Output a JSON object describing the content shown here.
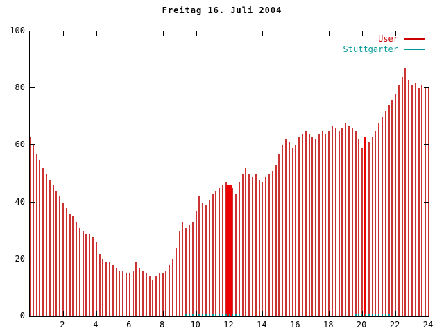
{
  "chart_data": {
    "type": "bar",
    "title": "Freitag 16. Juli 2004",
    "xlabel": "",
    "ylabel": "",
    "xlim": [
      0,
      24
    ],
    "ylim": [
      0,
      100
    ],
    "xticks": [
      2,
      4,
      6,
      8,
      10,
      12,
      14,
      16,
      18,
      20,
      22,
      24
    ],
    "yticks": [
      0,
      20,
      40,
      60,
      80,
      100
    ],
    "x_start": 0,
    "x_step": 0.2,
    "grid": false,
    "legend_position": "top-right",
    "series": [
      {
        "name": "User",
        "color": "#cc0000",
        "bar_color": "#cc3333",
        "values": [
          63,
          60,
          57,
          55,
          52,
          50,
          48,
          46,
          44,
          42,
          40,
          38,
          36,
          35,
          33,
          31,
          30,
          29,
          29,
          28,
          26,
          22,
          20,
          19,
          19,
          18,
          17,
          16,
          16,
          15,
          15,
          16,
          19,
          17,
          16,
          15,
          14,
          13,
          14,
          15,
          15,
          16,
          18,
          20,
          24,
          30,
          33,
          31,
          32,
          33,
          37,
          42,
          40,
          39,
          41,
          43,
          44,
          45,
          46,
          47,
          46,
          45,
          43,
          47,
          50,
          52,
          50,
          49,
          50,
          48,
          47,
          49,
          50,
          51,
          53,
          57,
          60,
          62,
          61,
          59,
          60,
          63,
          64,
          65,
          64,
          63,
          62,
          64,
          65,
          64,
          65,
          67,
          66,
          65,
          66,
          68,
          67,
          66,
          65,
          62,
          59,
          58,
          61,
          63,
          65,
          68,
          70,
          72,
          74,
          76,
          78,
          81,
          84,
          87,
          83,
          81,
          82,
          80,
          81,
          80,
          80
        ]
      },
      {
        "name": "Stuttgarter",
        "color": "#009999",
        "bar_color": "#009999",
        "values": [
          0,
          0,
          0,
          0,
          0,
          0,
          0,
          0,
          0,
          0,
          0,
          0,
          0,
          0,
          0,
          0,
          0,
          0,
          0,
          0,
          0,
          0,
          0,
          0,
          0,
          0,
          0,
          0,
          0,
          0,
          0,
          0,
          0,
          0,
          0,
          0,
          0,
          0,
          0,
          0,
          0,
          0,
          0,
          0,
          0,
          0,
          0,
          1,
          1,
          1,
          1,
          1,
          1,
          1,
          1,
          1,
          1,
          1,
          1,
          1,
          1,
          1,
          1,
          1,
          0,
          0,
          0,
          0,
          0,
          0,
          0,
          0,
          0,
          0,
          0,
          0,
          0,
          0,
          0,
          0,
          0,
          0,
          0,
          0,
          0,
          0,
          0,
          0,
          0,
          0,
          0,
          0,
          0,
          0,
          0,
          0,
          0,
          0,
          1,
          1,
          1,
          1,
          1,
          1,
          1,
          1,
          1,
          1,
          1,
          0,
          0,
          0,
          0,
          0,
          0,
          0,
          0,
          0,
          0,
          0,
          0
        ]
      }
    ],
    "dense_blocks": [
      {
        "x0": 11.8,
        "x1": 12.15,
        "value": 46,
        "color": "#ee0000"
      },
      {
        "x0": 20.1,
        "x1": 20.22,
        "value": 63,
        "color": "#ee0000"
      }
    ]
  }
}
